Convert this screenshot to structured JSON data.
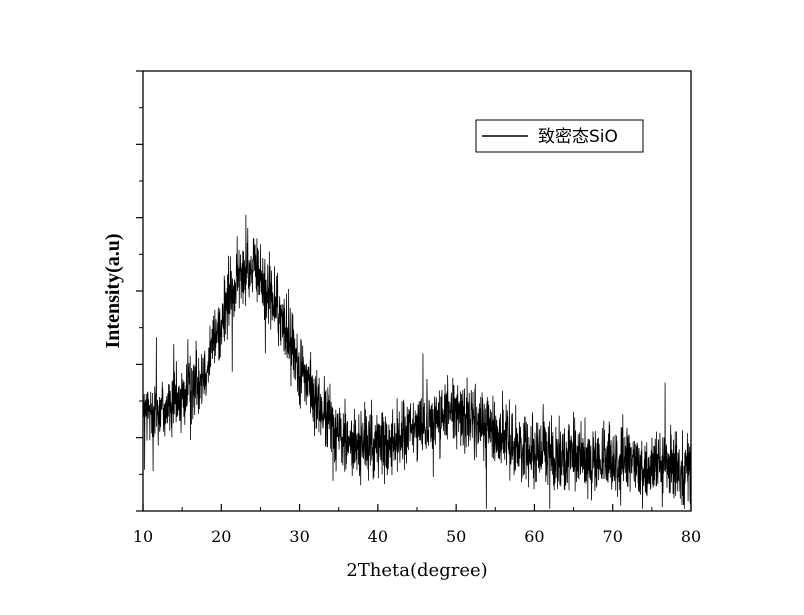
{
  "chart_data": {
    "type": "line",
    "xlabel": "2Theta(degree)",
    "ylabel": "Intensity(a.u)",
    "xlim": [
      10,
      80
    ],
    "ylim": [
      0,
      100
    ],
    "x_ticks": [
      10,
      20,
      30,
      40,
      50,
      60,
      70,
      80
    ],
    "y_tick_labels_shown": false,
    "grid": false,
    "legend_position": "top-right",
    "series": [
      {
        "name": "致密态SiO",
        "color": "#000000",
        "noise_amplitude": 6,
        "x": [
          10,
          12,
          14,
          16,
          18,
          20,
          21,
          22,
          23,
          24,
          25,
          26,
          27,
          28,
          29,
          30,
          31,
          32,
          33,
          34,
          35,
          36,
          37,
          38,
          40,
          42,
          44,
          46,
          47,
          48,
          49,
          50,
          51,
          52,
          53,
          54,
          55,
          56,
          58,
          60,
          62,
          64,
          66,
          68,
          70,
          72,
          74,
          76,
          78,
          80
        ],
        "y": [
          22,
          23,
          24,
          27,
          33,
          43,
          48,
          52,
          55,
          55,
          53,
          50,
          46,
          42,
          38,
          33,
          29,
          25,
          22,
          20,
          18,
          16,
          15,
          15,
          15,
          16,
          18,
          20,
          21,
          21,
          22,
          22,
          22,
          21,
          20,
          19,
          18,
          17,
          15,
          14,
          13,
          12,
          12,
          11,
          11,
          11,
          10,
          10,
          10,
          10
        ]
      }
    ]
  }
}
